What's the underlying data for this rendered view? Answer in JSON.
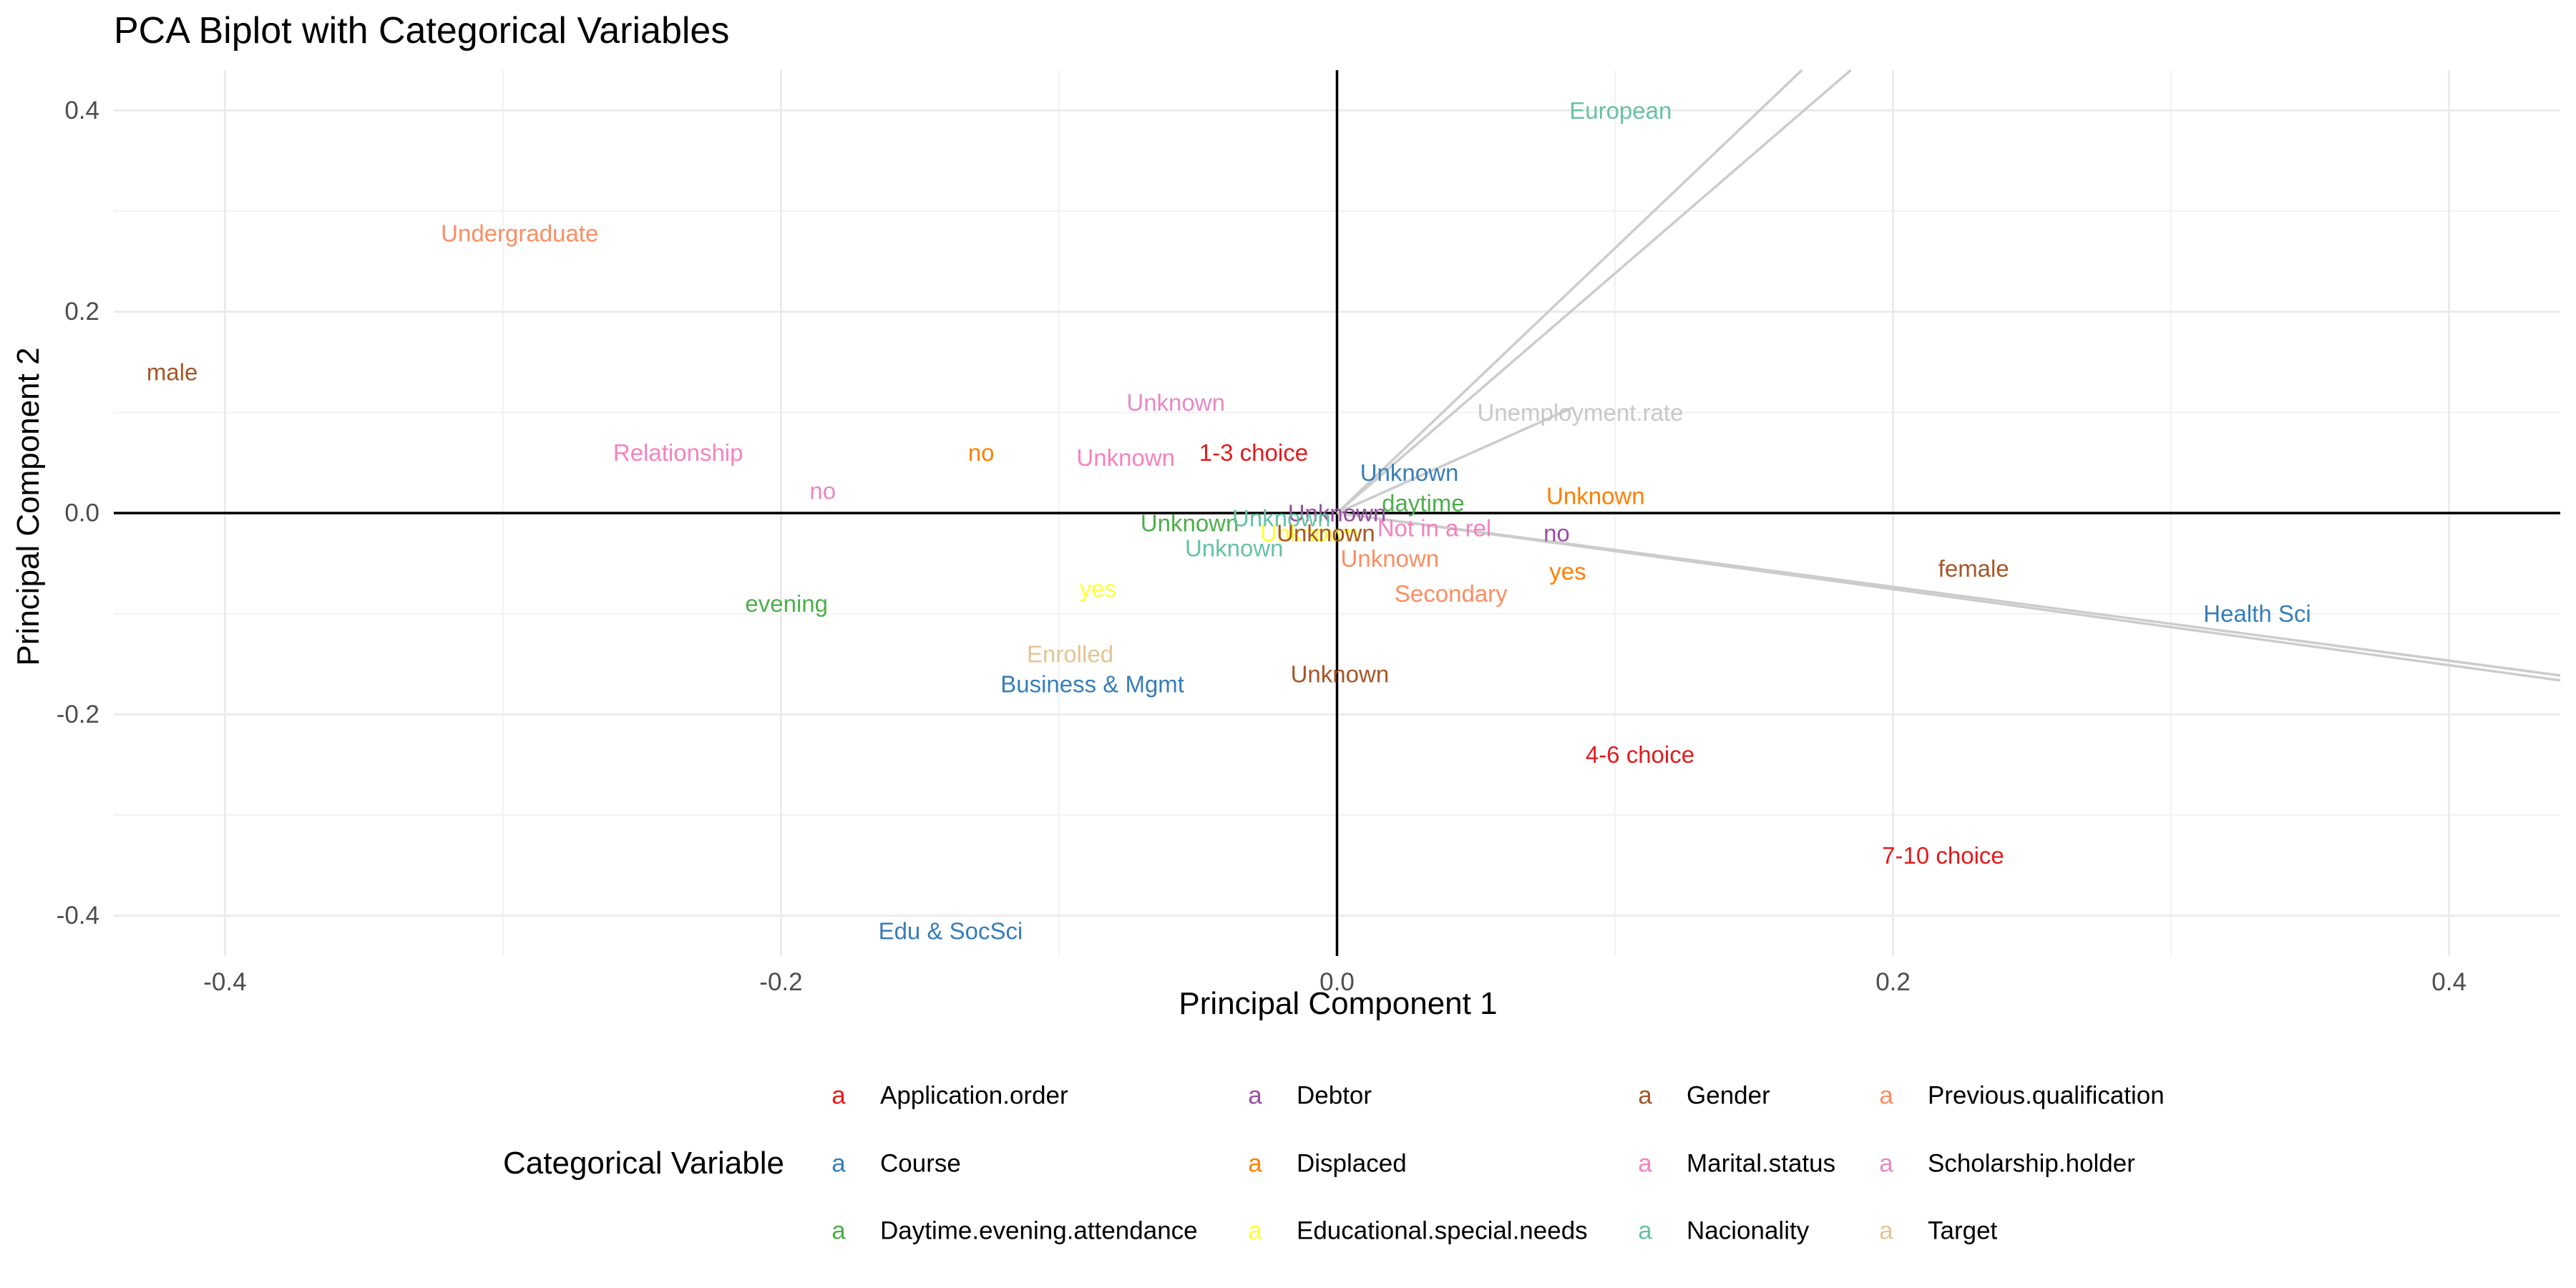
{
  "chart_data": {
    "type": "scatter",
    "title": "PCA Biplot with Categorical Variables",
    "xlabel": "Principal Component 1",
    "ylabel": "Principal Component 2",
    "xlim": [
      -0.44,
      0.44
    ],
    "ylim": [
      -0.44,
      0.44
    ],
    "x_ticks": [
      -0.4,
      -0.2,
      0.0,
      0.2,
      0.4
    ],
    "x_tick_labels": [
      "-0.4",
      "-0.2",
      "0.0",
      "0.2",
      "0.4"
    ],
    "y_ticks": [
      0.4,
      0.2,
      0.0,
      -0.2,
      -0.4
    ],
    "y_tick_labels": [
      "0.4",
      "0.2",
      "0.0",
      "-0.2",
      "-0.4"
    ],
    "grid": true,
    "legend": {
      "title": "Categorical Variable",
      "position": "bottom",
      "key_glyph": "a",
      "items": [
        {
          "name": "Application.order",
          "color": "#E41A1C"
        },
        {
          "name": "Course",
          "color": "#377EB8"
        },
        {
          "name": "Daytime.evening.attendance",
          "color": "#4DAF4A"
        },
        {
          "name": "Debtor",
          "color": "#984EA3"
        },
        {
          "name": "Displaced",
          "color": "#FF7F00"
        },
        {
          "name": "Educational.special.needs",
          "color": "#FFFF33"
        },
        {
          "name": "Gender",
          "color": "#A65628"
        },
        {
          "name": "Marital.status",
          "color": "#F781BF"
        },
        {
          "name": "Nacionality",
          "color": "#66C2A5"
        },
        {
          "name": "Previous.qualification",
          "color": "#FC8D62"
        },
        {
          "name": "Scholarship.holder",
          "color": "#E78AC3"
        },
        {
          "name": "Target",
          "color": "#E5C494"
        }
      ]
    },
    "vectors": [
      {
        "x": 0.19,
        "y": 0.5
      },
      {
        "x": 0.21,
        "y": 0.5
      },
      {
        "x": 0.085,
        "y": 0.105
      },
      {
        "x": 0.45,
        "y": -0.165
      },
      {
        "x": 0.45,
        "y": -0.17
      }
    ],
    "vector_labels": [
      {
        "label": "Unemployment.rate",
        "x": 0.0875,
        "y": 0.1
      }
    ],
    "points": [
      {
        "label": "European",
        "x": 0.102,
        "y": 0.4,
        "variable": "Nacionality"
      },
      {
        "label": "Undergraduate",
        "x": -0.294,
        "y": 0.278,
        "variable": "Previous.qualification"
      },
      {
        "label": "male",
        "x": -0.419,
        "y": 0.14,
        "variable": "Gender"
      },
      {
        "label": "Unknown",
        "x": -0.058,
        "y": 0.11,
        "variable": "Scholarship.holder"
      },
      {
        "label": "Relationship",
        "x": -0.237,
        "y": 0.06,
        "variable": "Marital.status"
      },
      {
        "label": "no",
        "x": -0.128,
        "y": 0.06,
        "variable": "Displaced"
      },
      {
        "label": "Unknown",
        "x": -0.076,
        "y": 0.055,
        "variable": "Marital.status"
      },
      {
        "label": "1-3 choice",
        "x": -0.03,
        "y": 0.06,
        "variable": "Application.order"
      },
      {
        "label": "no",
        "x": -0.185,
        "y": 0.022,
        "variable": "Scholarship.holder"
      },
      {
        "label": "Unknown",
        "x": 0.026,
        "y": 0.04,
        "variable": "Course"
      },
      {
        "label": "Unknown",
        "x": 0.093,
        "y": 0.017,
        "variable": "Displaced"
      },
      {
        "label": "daytime",
        "x": 0.031,
        "y": 0.01,
        "variable": "Daytime.evening.attendance"
      },
      {
        "label": "Unknown",
        "x": -0.053,
        "y": -0.01,
        "variable": "Daytime.evening.attendance"
      },
      {
        "label": "Unknown",
        "x": 0.0,
        "y": 0.0,
        "variable": "Debtor"
      },
      {
        "label": "Unknown",
        "x": -0.02,
        "y": -0.005,
        "variable": "Nacionality"
      },
      {
        "label": "Unknown",
        "x": -0.01,
        "y": -0.02,
        "variable": "Educational.special.needs"
      },
      {
        "label": "Unknown",
        "x": -0.004,
        "y": -0.02,
        "variable": "Gender"
      },
      {
        "label": "Not in a rel",
        "x": 0.035,
        "y": -0.015,
        "variable": "Marital.status"
      },
      {
        "label": "no",
        "x": 0.079,
        "y": -0.02,
        "variable": "Debtor"
      },
      {
        "label": "Unknown",
        "x": -0.037,
        "y": -0.035,
        "variable": "Nacionality"
      },
      {
        "label": "Unknown",
        "x": 0.019,
        "y": -0.045,
        "variable": "Previous.qualification"
      },
      {
        "label": "yes",
        "x": 0.083,
        "y": -0.058,
        "variable": "Displaced"
      },
      {
        "label": "female",
        "x": 0.229,
        "y": -0.055,
        "variable": "Gender"
      },
      {
        "label": "Secondary",
        "x": 0.041,
        "y": -0.08,
        "variable": "Previous.qualification"
      },
      {
        "label": "evening",
        "x": -0.198,
        "y": -0.09,
        "variable": "Daytime.evening.attendance"
      },
      {
        "label": "yes",
        "x": -0.086,
        "y": -0.075,
        "variable": "Educational.special.needs"
      },
      {
        "label": "Health Sci",
        "x": 0.331,
        "y": -0.1,
        "variable": "Course"
      },
      {
        "label": "Enrolled",
        "x": -0.096,
        "y": -0.14,
        "variable": "Target"
      },
      {
        "label": "Business & Mgmt",
        "x": -0.088,
        "y": -0.17,
        "variable": "Course"
      },
      {
        "label": "Unknown",
        "x": 0.001,
        "y": -0.16,
        "variable": "Gender"
      },
      {
        "label": "4-6 choice",
        "x": 0.109,
        "y": -0.24,
        "variable": "Application.order"
      },
      {
        "label": "7-10 choice",
        "x": 0.218,
        "y": -0.34,
        "variable": "Application.order"
      },
      {
        "label": "Edu & SocSci",
        "x": -0.139,
        "y": -0.415,
        "variable": "Course"
      }
    ]
  }
}
